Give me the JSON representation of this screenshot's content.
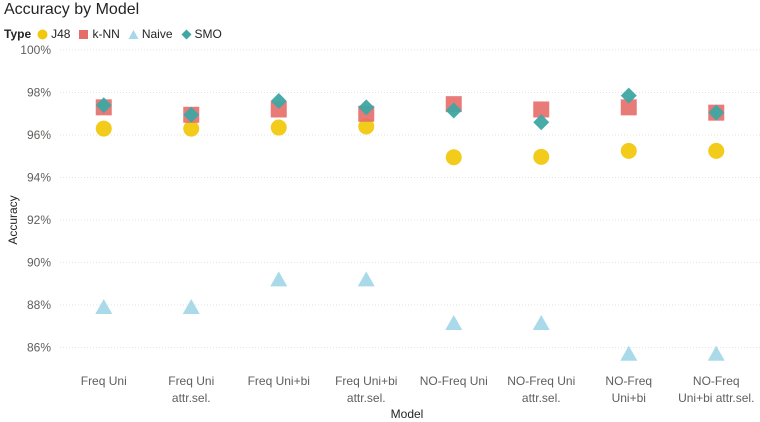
{
  "colors": {
    "J48": "#f2c80f",
    "k-NN": "#e66c68",
    "Naive": "#a5d8e8",
    "SMO": "#3fa7a2",
    "grid": "#e3e3e3",
    "axis_text": "#605e5c"
  },
  "chart_data": {
    "type": "scatter",
    "title": "Accuracy by Model",
    "legend_title": "Type",
    "legend_position": "top-left",
    "xlabel": "Model",
    "ylabel": "Accuracy",
    "ylim": [
      85.5,
      100
    ],
    "yticks": [
      "86%",
      "88%",
      "90%",
      "92%",
      "94%",
      "96%",
      "98%",
      "100%"
    ],
    "ytick_values": [
      86,
      88,
      90,
      92,
      94,
      96,
      98,
      100
    ],
    "grid": true,
    "categories": [
      [
        "Freq Uni"
      ],
      [
        "Freq Uni",
        "attr.sel."
      ],
      [
        "Freq Uni+bi"
      ],
      [
        "Freq Uni+bi",
        "attr.sel."
      ],
      [
        "NO-Freq Uni"
      ],
      [
        "NO-Freq Uni",
        "attr.sel."
      ],
      [
        "NO-Freq",
        "Uni+bi"
      ],
      [
        "NO-Freq",
        "Uni+bi attr.sel."
      ]
    ],
    "series": [
      {
        "name": "J48",
        "shape": "circle",
        "values": [
          96.3,
          96.3,
          96.35,
          96.4,
          94.95,
          94.97,
          95.25,
          95.25
        ]
      },
      {
        "name": "k-NN",
        "shape": "square",
        "values": [
          97.3,
          96.95,
          97.2,
          97.0,
          97.45,
          97.2,
          97.3,
          97.05
        ]
      },
      {
        "name": "Naive",
        "shape": "triangle",
        "values": [
          87.9,
          87.9,
          89.2,
          89.2,
          87.15,
          87.15,
          85.7,
          85.7
        ]
      },
      {
        "name": "SMO",
        "shape": "diamond",
        "values": [
          97.4,
          96.95,
          97.6,
          97.3,
          97.15,
          96.6,
          97.85,
          97.05
        ]
      }
    ]
  }
}
